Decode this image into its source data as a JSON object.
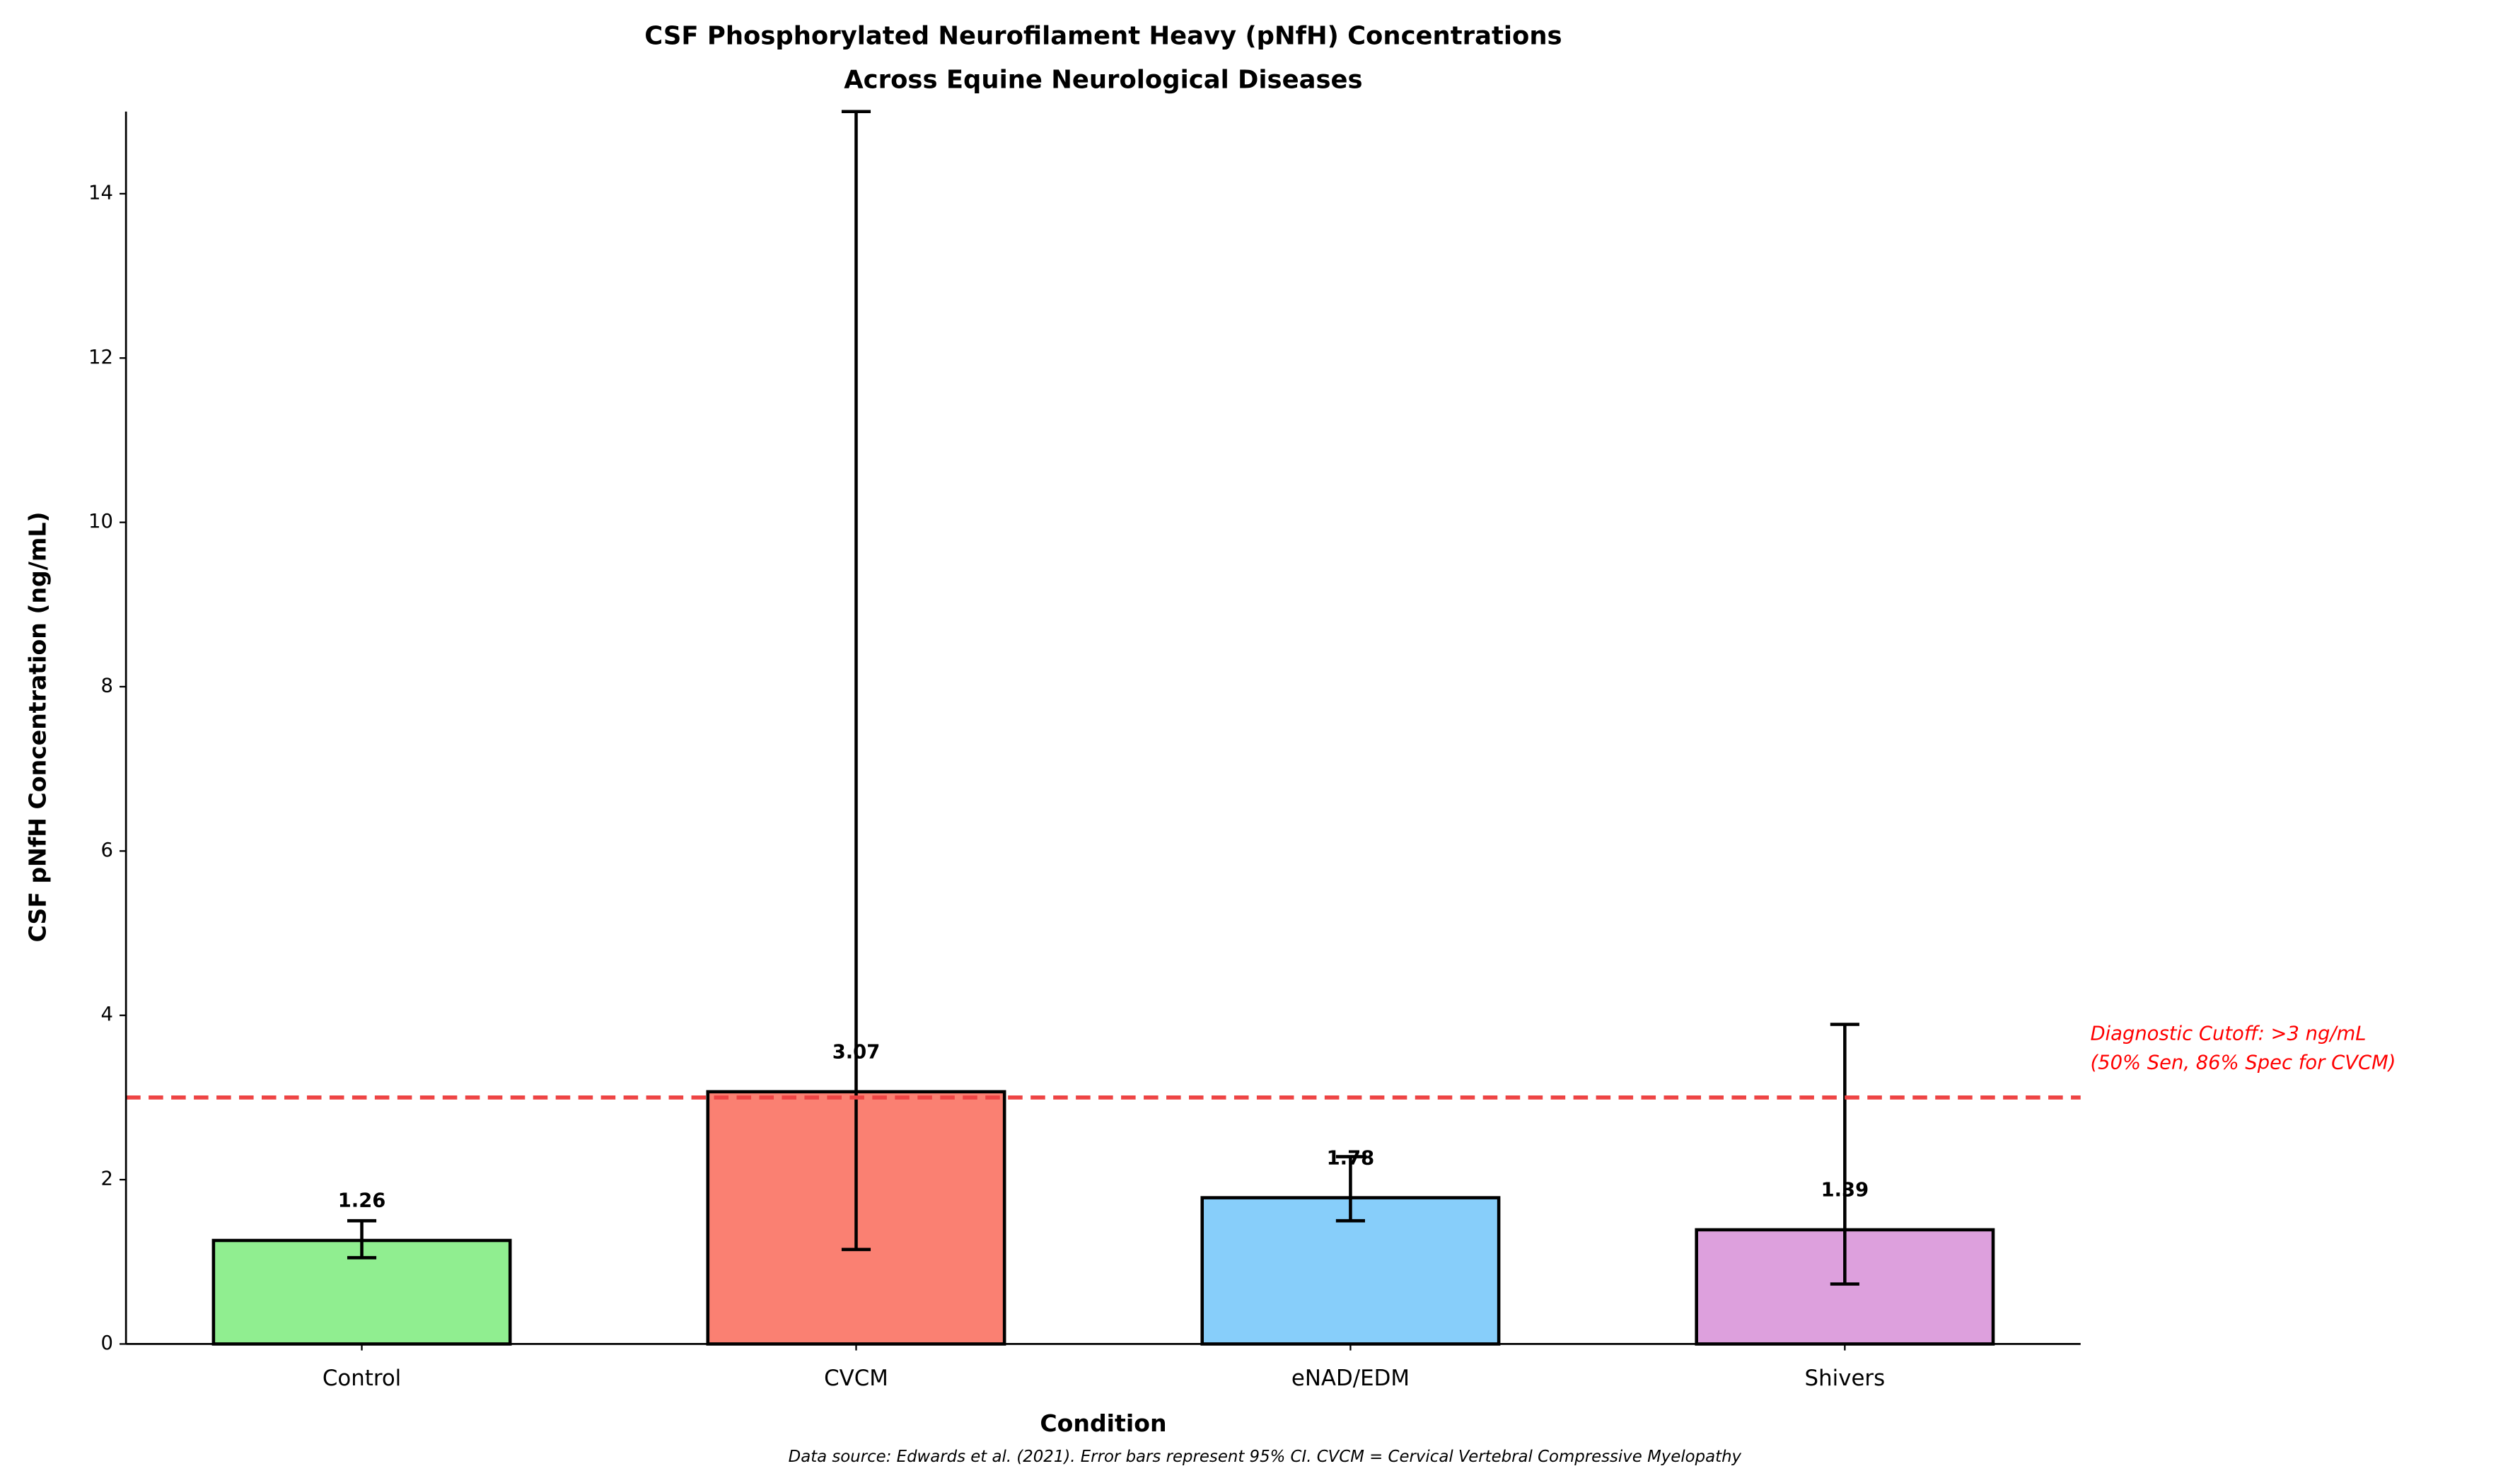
{
  "chart_data": {
    "type": "bar",
    "title": [
      "CSF Phosphorylated Neurofilament Heavy (pNfH) Concentrations",
      "Across Equine Neurological Diseases"
    ],
    "xlabel": "Condition",
    "ylabel": "CSF pNfH Concentration (ng/mL)",
    "footnote": "Data source: Edwards et al. (2021). Error bars represent 95% CI. CVCM = Cervical Vertebral Compressive Myelopathy",
    "categories": [
      "Control",
      "CVCM",
      "eNAD/EDM",
      "Shivers"
    ],
    "values": [
      1.26,
      3.07,
      1.78,
      1.39
    ],
    "value_labels": [
      "1.26",
      "3.07",
      "1.78",
      "1.39"
    ],
    "ci_lower": [
      1.05,
      1.15,
      1.5,
      0.73
    ],
    "ci_upper": [
      1.5,
      15,
      2.28,
      3.89
    ],
    "colors": [
      "#90ee90",
      "#fa8072",
      "#87cefa",
      "#dda0dd"
    ],
    "ylim": [
      0,
      15
    ],
    "yticks": [
      0,
      2,
      4,
      6,
      8,
      10,
      12,
      14
    ],
    "reference_line": {
      "value": 3,
      "color": "#ee4444",
      "label": [
        "Diagnostic Cutoff: >3 ng/mL",
        "(50% Sen, 86% Spec for CVCM)"
      ]
    }
  }
}
